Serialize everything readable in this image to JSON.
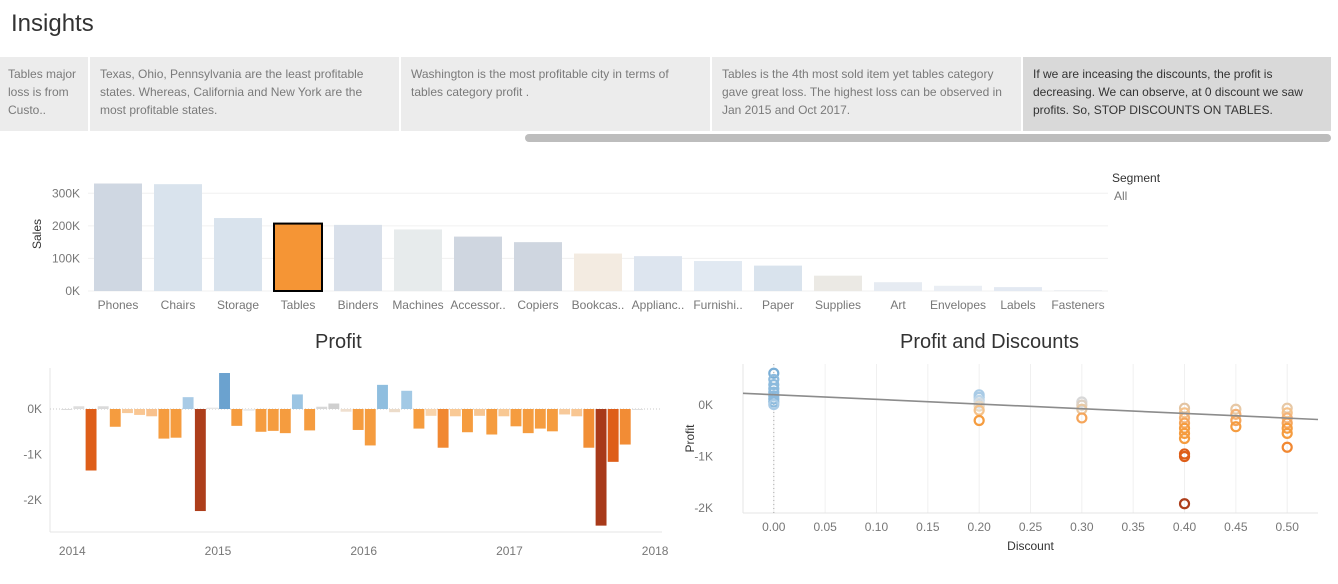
{
  "page": {
    "title": "Insights"
  },
  "insights": [
    {
      "text": "Tables major loss is from Custo..",
      "active": false
    },
    {
      "text": "Texas, Ohio, Pennsylvania are the least profitable states. Whereas, California and New York are the most profitable states.",
      "active": false
    },
    {
      "text": "Washington is the most profitable city in terms of tables category profit .",
      "active": false
    },
    {
      "text": "Tables is the 4th most sold item yet tables category gave great loss. The highest loss can be observed in Jan 2015 and Oct 2017.",
      "active": false
    },
    {
      "text": "If we are inceasing the discounts, the profit is decreasing. We can observe, at 0 discount we saw profits. So, STOP DISCOUNTS ON TABLES.",
      "active": true
    }
  ],
  "legend": {
    "title": "Segment",
    "value": "All"
  },
  "chart_data": [
    {
      "type": "bar",
      "ylabel": "Sales",
      "ylim": [
        0,
        350000
      ],
      "yticks": [
        {
          "v": 0,
          "label": "0K"
        },
        {
          "v": 100000,
          "label": "100K"
        },
        {
          "v": 200000,
          "label": "200K"
        },
        {
          "v": 300000,
          "label": "300K"
        }
      ],
      "categories": [
        "Phones",
        "Chairs",
        "Storage",
        "Tables",
        "Binders",
        "Machines",
        "Accessor..",
        "Copiers",
        "Bookcas..",
        "Applianc..",
        "Furnishi..",
        "Paper",
        "Supplies",
        "Art",
        "Envelopes",
        "Labels",
        "Fasteners"
      ],
      "values": [
        330000,
        328000,
        224000,
        207000,
        203000,
        189000,
        167000,
        150000,
        115000,
        107000,
        92000,
        78000,
        47000,
        27000,
        16000,
        12000,
        3000
      ],
      "colors": [
        "#cfd7e2",
        "#d9e3ed",
        "#d9e3ed",
        "#f59535",
        "#d9e0ea",
        "#e7ebec",
        "#cfd6e0",
        "#cfd6e0",
        "#f3ebe1",
        "#dde5ef",
        "#e1e9f2",
        "#d9e3ed",
        "#ebe9e4",
        "#e6ebf2",
        "#eaeef4",
        "#e3e9f2",
        "#eef0f3"
      ],
      "highlight": "Tables"
    },
    {
      "type": "bar",
      "title": "Profit",
      "ylim": [
        -2700,
        900
      ],
      "yticks": [
        {
          "v": 0,
          "label": "0K"
        },
        {
          "v": -1000,
          "label": "-1K"
        },
        {
          "v": -2000,
          "label": "-2K"
        }
      ],
      "xticks": [
        {
          "v": 2014.0,
          "label": "2014"
        },
        {
          "v": 2015.0,
          "label": "2015"
        },
        {
          "v": 2016.0,
          "label": "2016"
        },
        {
          "v": 2017.0,
          "label": "2017"
        },
        {
          "v": 2018.0,
          "label": "2018"
        }
      ],
      "x": [
        2014.0,
        2014.083,
        2014.167,
        2014.25,
        2014.333,
        2014.417,
        2014.5,
        2014.583,
        2014.667,
        2014.75,
        2014.833,
        2014.917,
        2015.0,
        2015.083,
        2015.167,
        2015.25,
        2015.333,
        2015.417,
        2015.5,
        2015.583,
        2015.667,
        2015.75,
        2015.833,
        2015.917,
        2016.0,
        2016.083,
        2016.167,
        2016.25,
        2016.333,
        2016.417,
        2016.5,
        2016.583,
        2016.667,
        2016.75,
        2016.833,
        2016.917,
        2017.0,
        2017.083,
        2017.167,
        2017.25,
        2017.333,
        2017.417,
        2017.5,
        2017.583,
        2017.667,
        2017.75,
        2017.833,
        2017.917
      ],
      "values": [
        -20,
        60,
        -1350,
        60,
        -390,
        -90,
        -130,
        -160,
        -650,
        -630,
        260,
        -2240,
        30,
        790,
        -370,
        -40,
        -500,
        -480,
        -530,
        320,
        -470,
        50,
        120,
        -60,
        -460,
        -800,
        530,
        -70,
        400,
        -430,
        -150,
        -850,
        -160,
        -510,
        -150,
        -560,
        -160,
        -380,
        -530,
        -430,
        -490,
        -120,
        -160,
        -850,
        -2560,
        -1160,
        -780,
        0
      ],
      "colors": [
        "#dcdcdc",
        "#dddddd",
        "#de5e19",
        "#dadada",
        "#f59c3f",
        "#f7c99a",
        "#f9c692",
        "#f8c18d",
        "#f59c3f",
        "#f59c3f",
        "#a9cbe6",
        "#ad3e1b",
        "#e6e6e6",
        "#6ba2cf",
        "#f59c3f",
        "#eaeaea",
        "#f59c3f",
        "#f59c3f",
        "#f59c3f",
        "#9cc5e3",
        "#f59c3f",
        "#d8d8d8",
        "#cfcfcf",
        "#efdfcf",
        "#f59c3f",
        "#f59c3f",
        "#8fbedf",
        "#ecdcca",
        "#a2c9e5",
        "#f59c3f",
        "#f9d4ac",
        "#f18832",
        "#f9c995",
        "#f59c3f",
        "#f7c692",
        "#f59c3f",
        "#f8c893",
        "#f59c3f",
        "#f59c3f",
        "#f59c3f",
        "#f59c3f",
        "#f7c99a",
        "#f8c692",
        "#f18e35",
        "#a83a1a",
        "#de5e19",
        "#f28c35",
        "#e0e0e0"
      ]
    },
    {
      "type": "scatter",
      "title": "Profit and Discounts",
      "xlabel": "Discount",
      "ylabel": "Profit",
      "xlim": [
        -0.03,
        0.53
      ],
      "ylim": [
        -2100,
        800
      ],
      "xticks": [
        "0.00",
        "0.05",
        "0.10",
        "0.15",
        "0.20",
        "0.25",
        "0.30",
        "0.35",
        "0.40",
        "0.45",
        "0.50"
      ],
      "yticks": [
        {
          "v": 0,
          "label": "0K"
        },
        {
          "v": -1000,
          "label": "-1K"
        },
        {
          "v": -2000,
          "label": "-2K"
        }
      ],
      "trendline": {
        "x": [
          -0.03,
          0.53
        ],
        "y": [
          230,
          -280
        ]
      },
      "points": [
        {
          "x": 0.0,
          "y": 620,
          "c": "#79aed6"
        },
        {
          "x": 0.0,
          "y": 500,
          "c": "#8cbadd"
        },
        {
          "x": 0.0,
          "y": 400,
          "c": "#8cbadd"
        },
        {
          "x": 0.0,
          "y": 320,
          "c": "#8cbadd"
        },
        {
          "x": 0.0,
          "y": 250,
          "c": "#8cbadd"
        },
        {
          "x": 0.0,
          "y": 180,
          "c": "#8cbadd"
        },
        {
          "x": 0.0,
          "y": 120,
          "c": "#8cbadd"
        },
        {
          "x": 0.0,
          "y": 60,
          "c": "#8cbadd"
        },
        {
          "x": 0.0,
          "y": 10,
          "c": "#a9cbe6"
        },
        {
          "x": 0.2,
          "y": 200,
          "c": "#a9cbe6"
        },
        {
          "x": 0.2,
          "y": 150,
          "c": "#a9cbe6"
        },
        {
          "x": 0.2,
          "y": 90,
          "c": "#bcd5e9"
        },
        {
          "x": 0.2,
          "y": 40,
          "c": "#d5dde3"
        },
        {
          "x": 0.2,
          "y": -20,
          "c": "#e8d9c4"
        },
        {
          "x": 0.2,
          "y": -100,
          "c": "#f5c28a"
        },
        {
          "x": 0.2,
          "y": -300,
          "c": "#f59c3f"
        },
        {
          "x": 0.3,
          "y": 60,
          "c": "#d8d8d8"
        },
        {
          "x": 0.3,
          "y": 0,
          "c": "#ddd0c2"
        },
        {
          "x": 0.3,
          "y": -80,
          "c": "#e9c9a3"
        },
        {
          "x": 0.3,
          "y": -250,
          "c": "#f5a55a"
        },
        {
          "x": 0.4,
          "y": -60,
          "c": "#e3c4a2"
        },
        {
          "x": 0.4,
          "y": -150,
          "c": "#f5c28a"
        },
        {
          "x": 0.4,
          "y": -250,
          "c": "#f5b377"
        },
        {
          "x": 0.4,
          "y": -350,
          "c": "#f5a55a"
        },
        {
          "x": 0.4,
          "y": -450,
          "c": "#f59c3f"
        },
        {
          "x": 0.4,
          "y": -550,
          "c": "#f59c3f"
        },
        {
          "x": 0.4,
          "y": -650,
          "c": "#f59c3f"
        },
        {
          "x": 0.4,
          "y": -950,
          "c": "#de5e19"
        },
        {
          "x": 0.4,
          "y": -1000,
          "c": "#de5e19"
        },
        {
          "x": 0.4,
          "y": -1920,
          "c": "#ad3e1b"
        },
        {
          "x": 0.45,
          "y": -80,
          "c": "#e7c8a5"
        },
        {
          "x": 0.45,
          "y": -180,
          "c": "#f5b377"
        },
        {
          "x": 0.45,
          "y": -300,
          "c": "#f5a55a"
        },
        {
          "x": 0.45,
          "y": -420,
          "c": "#f59c3f"
        },
        {
          "x": 0.5,
          "y": -60,
          "c": "#e7c8a5"
        },
        {
          "x": 0.5,
          "y": -150,
          "c": "#f5c28a"
        },
        {
          "x": 0.5,
          "y": -250,
          "c": "#f5b377"
        },
        {
          "x": 0.5,
          "y": -350,
          "c": "#f5a55a"
        },
        {
          "x": 0.5,
          "y": -450,
          "c": "#f59c3f"
        },
        {
          "x": 0.5,
          "y": -550,
          "c": "#f59c3f"
        },
        {
          "x": 0.5,
          "y": -820,
          "c": "#f18832"
        }
      ]
    }
  ]
}
